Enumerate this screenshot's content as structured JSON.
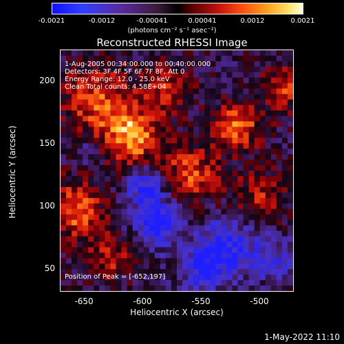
{
  "colorbar": {
    "ticks": [
      "-0.0021",
      "-0.0012",
      "-0.00041",
      "0.00041",
      "0.0012",
      "0.0021"
    ],
    "unit": "(photons cm⁻² s⁻¹ asec⁻²)"
  },
  "title": "Reconstructed RHESSI Image",
  "annotations": {
    "time": "1-Aug-2005 00:34:00.000 to 00:40:00.000",
    "detectors": "Detectors: 3F 4F 5F 6F 7F 8F, Att 0",
    "energy": "Energy Range: 12.0 - 25.0 keV",
    "clean": "Clean     Total counts: 4.58E+04",
    "peak": "Position of Peak = [-652,197]"
  },
  "axes": {
    "xlabel": "Heliocentric X (arcsec)",
    "ylabel": "Heliocentric Y (arcsec)",
    "xticks": [
      "-650",
      "-600",
      "-550",
      "-500"
    ],
    "yticks": [
      "200",
      "150",
      "100",
      "50"
    ]
  },
  "timestamp": "1-May-2022 11:10",
  "colors": {
    "background": "#000000",
    "foreground": "#ffffff"
  }
}
